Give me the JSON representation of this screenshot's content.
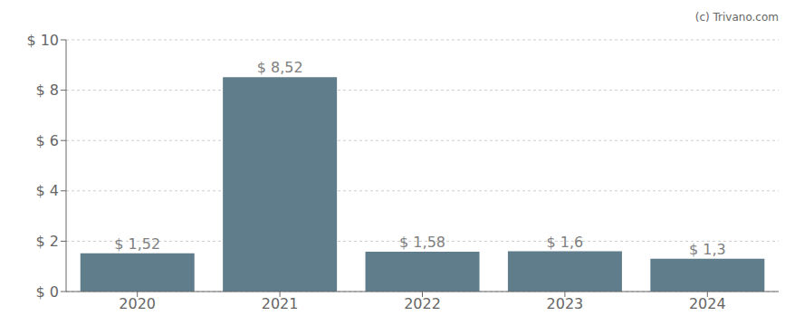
{
  "chart_data": {
    "type": "bar",
    "categories": [
      "2020",
      "2021",
      "2022",
      "2023",
      "2024"
    ],
    "values": [
      1.52,
      8.52,
      1.58,
      1.6,
      1.3
    ],
    "value_labels": [
      "$ 1,52",
      "$ 8,52",
      "$ 1,58",
      "$ 1,6",
      "$ 1,3"
    ],
    "data_labels": true,
    "color": "#5f7d8b",
    "ylim": [
      0,
      10
    ],
    "yticks": [
      {
        "value": 0,
        "label": "$ 0"
      },
      {
        "value": 2,
        "label": "$ 2"
      },
      {
        "value": 4,
        "label": "$ 4"
      },
      {
        "value": 6,
        "label": "$ 6"
      },
      {
        "value": 8,
        "label": "$ 8"
      },
      {
        "value": 10,
        "label": "$ 10"
      }
    ],
    "grid": true,
    "annotations": [
      "(c) Trivano.com"
    ]
  }
}
